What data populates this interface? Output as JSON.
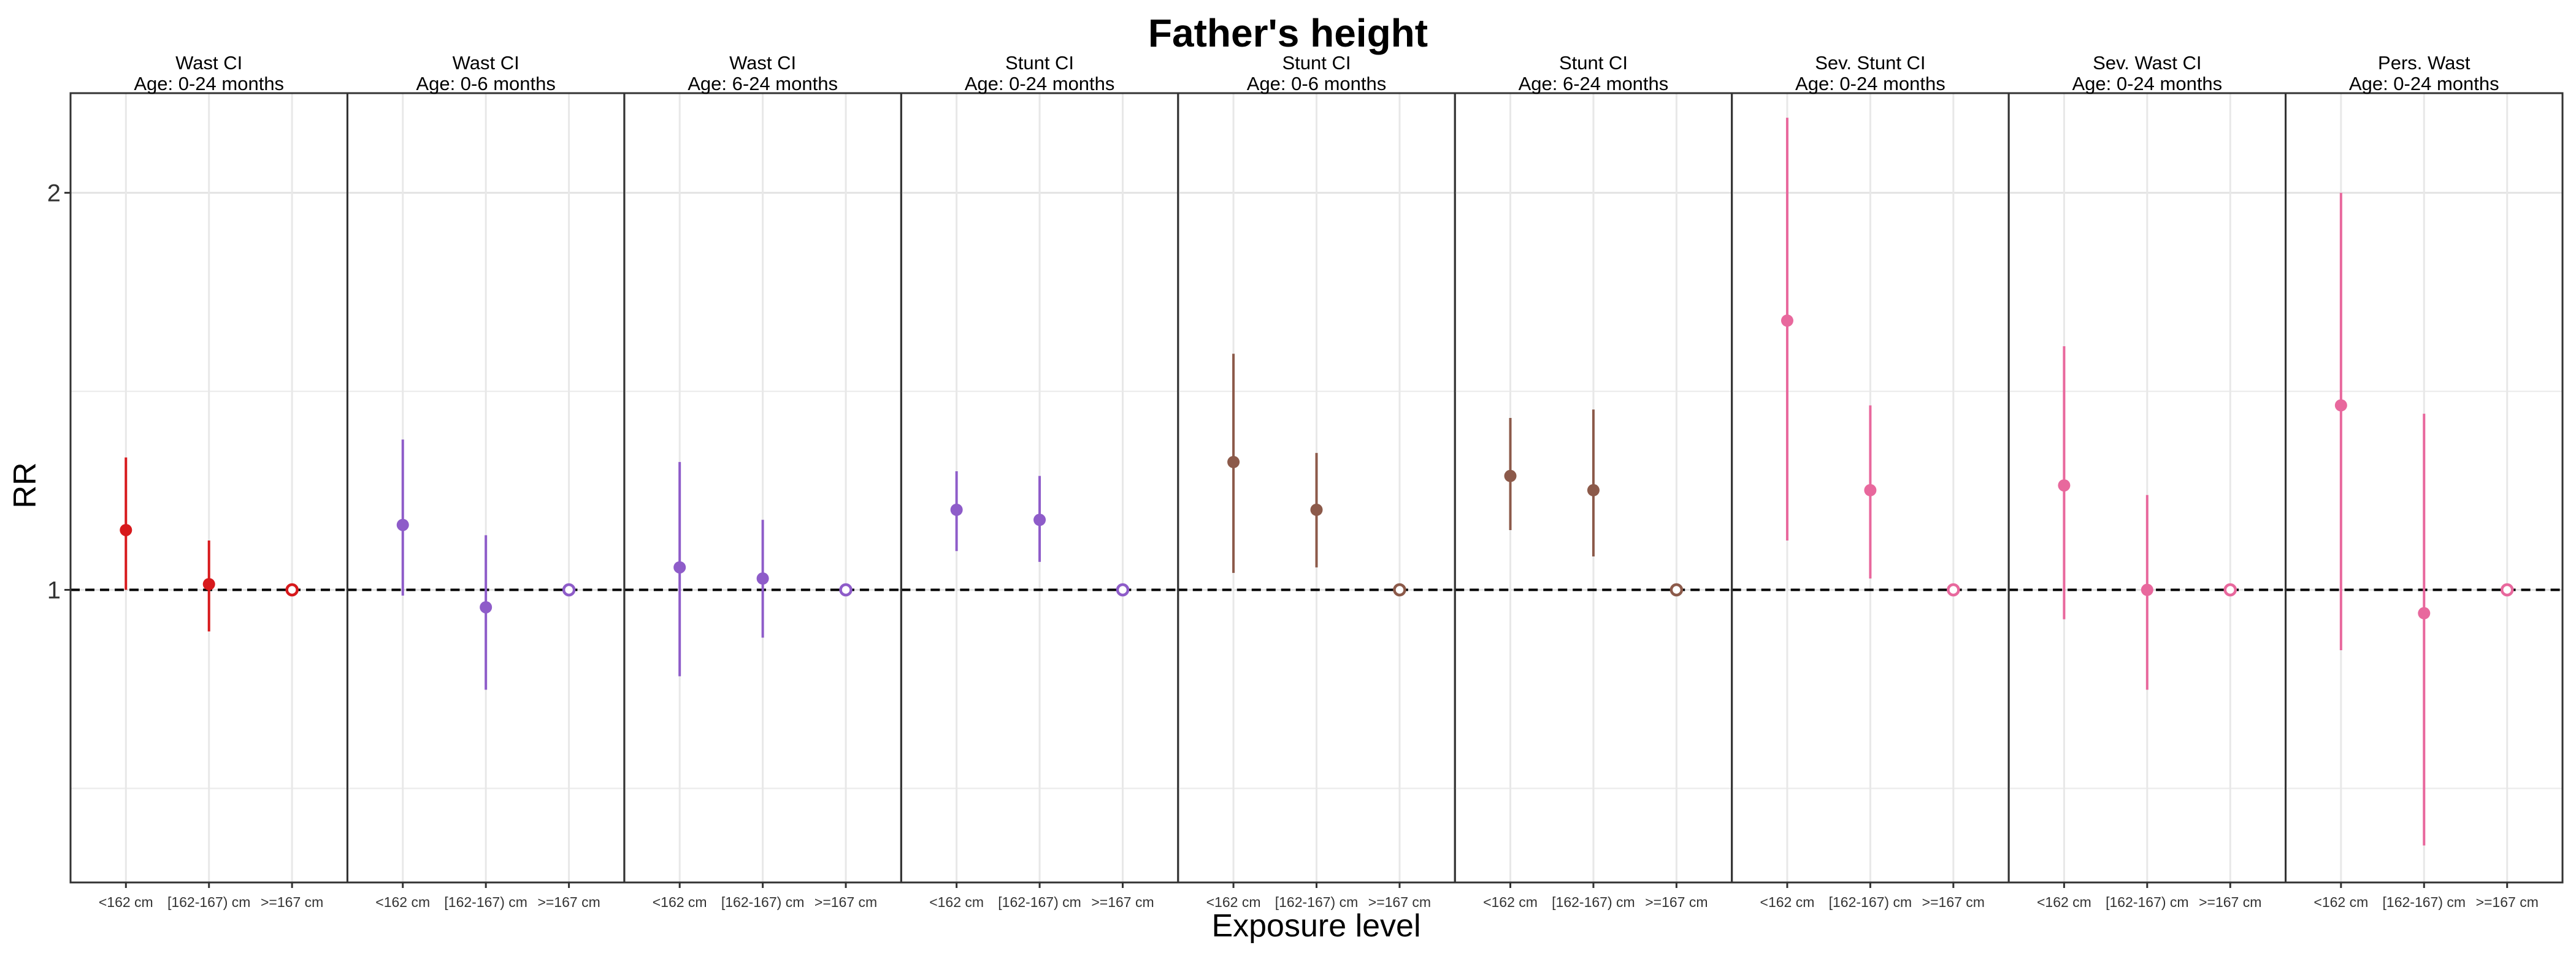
{
  "chart_data": {
    "type": "scatter",
    "title": "Father's height",
    "xlabel": "Exposure level",
    "ylabel": "RR",
    "scale": "log",
    "ylim": [
      0.6,
      2.38
    ],
    "yticks": [
      1,
      2
    ],
    "y_ticks_labels": [
      "1",
      "2"
    ],
    "reference_line": 1,
    "grid": true,
    "categories": [
      "<162 cm",
      "[162-167) cm",
      ">=167 cm"
    ],
    "panels": [
      {
        "outcome": "Wast CI",
        "age": "Age: 0-24 months",
        "color": "#d7191c",
        "points": [
          {
            "category": "<162 cm",
            "rr": 1.11,
            "lower": 1.0,
            "upper": 1.26
          },
          {
            "category": "[162-167) cm",
            "rr": 1.01,
            "lower": 0.93,
            "upper": 1.09
          },
          {
            "category": ">=167 cm",
            "rr": 1.0,
            "reference": true
          }
        ]
      },
      {
        "outcome": "Wast CI",
        "age": "Age: 0-6 months",
        "color": "#8e5cc9",
        "points": [
          {
            "category": "<162 cm",
            "rr": 1.12,
            "lower": 0.99,
            "upper": 1.3
          },
          {
            "category": "[162-167) cm",
            "rr": 0.97,
            "lower": 0.84,
            "upper": 1.1
          },
          {
            "category": ">=167 cm",
            "rr": 1.0,
            "reference": true
          }
        ]
      },
      {
        "outcome": "Wast CI",
        "age": "Age: 6-24 months",
        "color": "#8e5cc9",
        "points": [
          {
            "category": "<162 cm",
            "rr": 1.04,
            "lower": 0.86,
            "upper": 1.25
          },
          {
            "category": "[162-167) cm",
            "rr": 1.02,
            "lower": 0.92,
            "upper": 1.13
          },
          {
            "category": ">=167 cm",
            "rr": 1.0,
            "reference": true
          }
        ]
      },
      {
        "outcome": "Stunt CI",
        "age": "Age: 0-24 months",
        "color": "#8e5cc9",
        "points": [
          {
            "category": "<162 cm",
            "rr": 1.15,
            "lower": 1.07,
            "upper": 1.23
          },
          {
            "category": "[162-167) cm",
            "rr": 1.13,
            "lower": 1.05,
            "upper": 1.22
          },
          {
            "category": ">=167 cm",
            "rr": 1.0,
            "reference": true
          }
        ]
      },
      {
        "outcome": "Stunt CI",
        "age": "Age: 0-6 months",
        "color": "#8c5a4a",
        "points": [
          {
            "category": "<162 cm",
            "rr": 1.25,
            "lower": 1.03,
            "upper": 1.51
          },
          {
            "category": "[162-167) cm",
            "rr": 1.15,
            "lower": 1.04,
            "upper": 1.27
          },
          {
            "category": ">=167 cm",
            "rr": 1.0,
            "reference": true
          }
        ]
      },
      {
        "outcome": "Stunt CI",
        "age": "Age: 6-24 months",
        "color": "#8c5a4a",
        "points": [
          {
            "category": "<162 cm",
            "rr": 1.22,
            "lower": 1.11,
            "upper": 1.35
          },
          {
            "category": "[162-167) cm",
            "rr": 1.19,
            "lower": 1.06,
            "upper": 1.37
          },
          {
            "category": ">=167 cm",
            "rr": 1.0,
            "reference": true
          }
        ]
      },
      {
        "outcome": "Sev. Stunt CI",
        "age": "Age: 0-24 months",
        "color": "#e8689d",
        "points": [
          {
            "category": "<162 cm",
            "rr": 1.6,
            "lower": 1.09,
            "upper": 2.28
          },
          {
            "category": "[162-167) cm",
            "rr": 1.19,
            "lower": 1.02,
            "upper": 1.38
          },
          {
            "category": ">=167 cm",
            "rr": 1.0,
            "reference": true
          }
        ]
      },
      {
        "outcome": "Sev. Wast CI",
        "age": "Age: 0-24 months",
        "color": "#e8689d",
        "points": [
          {
            "category": "<162 cm",
            "rr": 1.2,
            "lower": 0.95,
            "upper": 1.53
          },
          {
            "category": "[162-167) cm",
            "rr": 1.0,
            "lower": 0.84,
            "upper": 1.18
          },
          {
            "category": ">=167 cm",
            "rr": 1.0,
            "reference": true
          }
        ]
      },
      {
        "outcome": "Pers. Wast",
        "age": "Age: 0-24 months",
        "color": "#e8689d",
        "points": [
          {
            "category": "<162 cm",
            "rr": 1.38,
            "lower": 0.9,
            "upper": 2.0
          },
          {
            "category": "[162-167) cm",
            "rr": 0.96,
            "lower": 0.64,
            "upper": 1.36
          },
          {
            "category": ">=167 cm",
            "rr": 1.0,
            "reference": true
          }
        ]
      }
    ]
  }
}
